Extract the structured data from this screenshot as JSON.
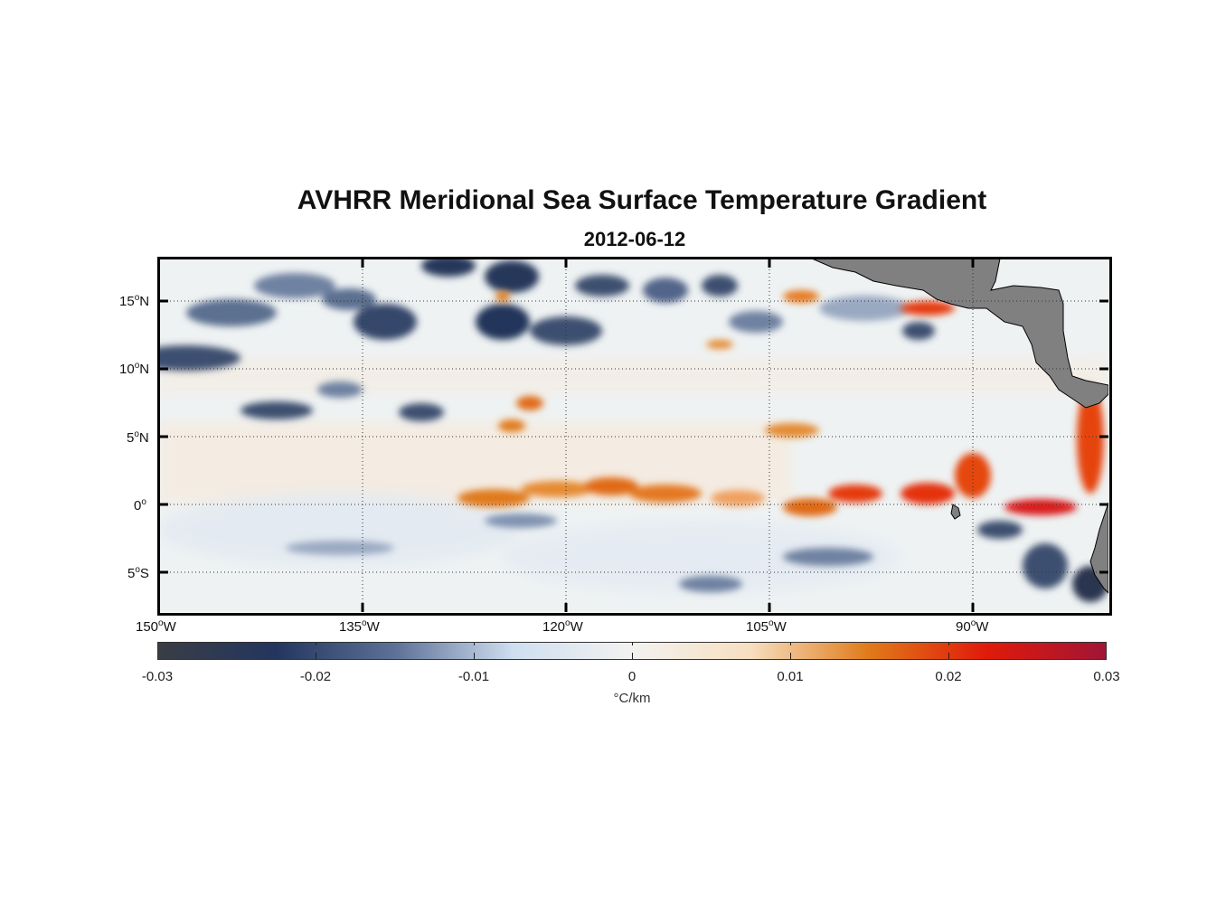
{
  "title": "AVHRR Meridional Sea Surface Temperature Gradient",
  "subtitle": "2012-06-12",
  "lat_labels": [
    {
      "deg": "15",
      "hemi": "N"
    },
    {
      "deg": "10",
      "hemi": "N"
    },
    {
      "deg": "5",
      "hemi": "N"
    },
    {
      "deg": "0",
      "hemi": ""
    },
    {
      "deg": "5",
      "hemi": "S"
    }
  ],
  "lon_labels": [
    {
      "deg": "150",
      "hemi": "W"
    },
    {
      "deg": "135",
      "hemi": "W"
    },
    {
      "deg": "120",
      "hemi": "W"
    },
    {
      "deg": "105",
      "hemi": "W"
    },
    {
      "deg": "90",
      "hemi": "W"
    }
  ],
  "colorbar": {
    "ticks": [
      "-0.03",
      "-0.02",
      "-0.01",
      "0",
      "0.01",
      "0.02",
      "0.03"
    ],
    "units": "°C/km",
    "colors": [
      "#3a3d45",
      "#23365f",
      "#5d7198",
      "#cfdff0",
      "#f2f2f0",
      "#f7dfc0",
      "#e07a1a",
      "#e01a0a",
      "#a01535"
    ]
  },
  "map": {
    "extent": {
      "lon": [
        -150,
        -80
      ],
      "lat": [
        -8,
        18
      ]
    },
    "land_color": "#808080",
    "ocean_base": "#eef2f3"
  }
}
